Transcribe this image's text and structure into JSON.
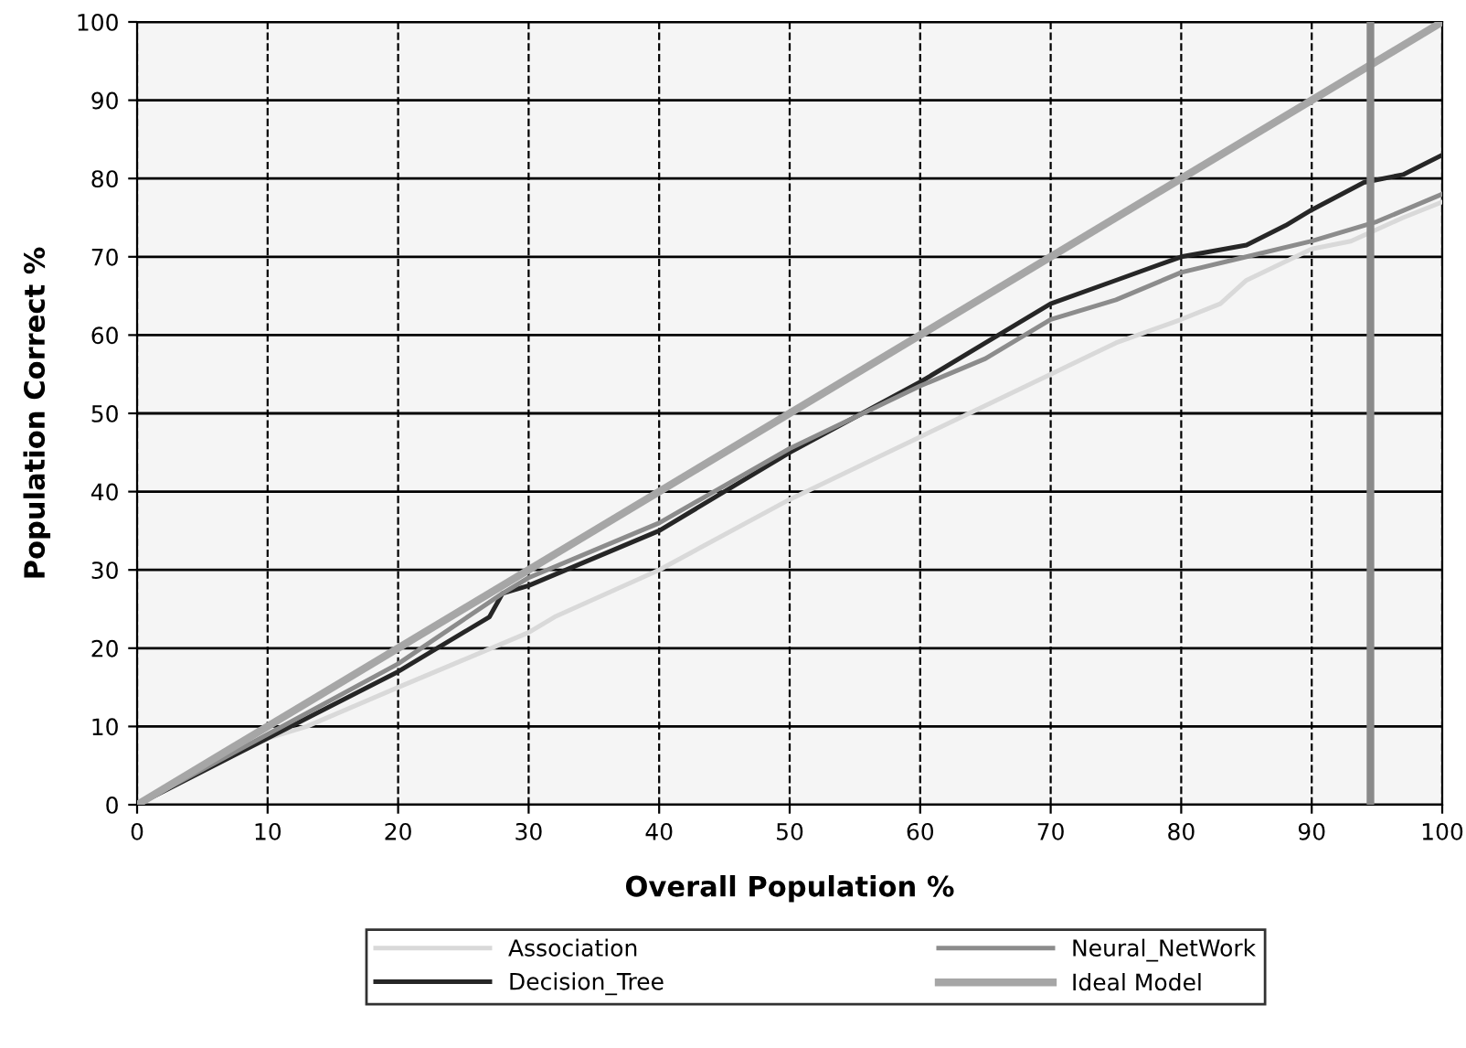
{
  "chart_data": {
    "type": "line",
    "xlabel": "Overall Population %",
    "ylabel": "Population Correct %",
    "xlim": [
      0,
      100
    ],
    "ylim": [
      0,
      100
    ],
    "xticks": [
      0,
      10,
      20,
      30,
      40,
      50,
      60,
      70,
      80,
      90,
      100
    ],
    "yticks": [
      0,
      10,
      20,
      30,
      40,
      50,
      60,
      70,
      80,
      90,
      100
    ],
    "grid": true,
    "legend": "bottom",
    "marker": "none",
    "line_style": "solid",
    "ref_lines": [
      {
        "axis": "x",
        "value": 94.5,
        "label": null,
        "color": "#8a8a8a"
      }
    ],
    "series": [
      {
        "name": "Association",
        "color": "#d9d9d9",
        "x": [
          0,
          10,
          13,
          20,
          25,
          30,
          32,
          40,
          50,
          55,
          60,
          65,
          70,
          75,
          80,
          83,
          85,
          90,
          93,
          97,
          100
        ],
        "values": [
          0,
          8.5,
          10,
          15,
          18.5,
          22,
          24,
          30,
          39,
          43,
          47,
          51,
          55,
          59,
          62,
          64,
          67,
          71,
          72,
          75,
          77
        ]
      },
      {
        "name": "Decision_Tree",
        "color": "#262626",
        "x": [
          0,
          10,
          20,
          25,
          27,
          28,
          30,
          40,
          50,
          60,
          65,
          70,
          75,
          80,
          85,
          88,
          90,
          94,
          97,
          100
        ],
        "values": [
          0,
          8.5,
          17,
          22,
          24,
          27,
          28,
          35,
          45,
          54,
          59,
          64,
          67,
          70,
          71.5,
          74,
          76,
          79.5,
          80.5,
          83
        ]
      },
      {
        "name": "Neural_NetWork",
        "color": "#8c8c8c",
        "x": [
          0,
          10,
          20,
          28,
          30,
          40,
          50,
          60,
          65,
          70,
          75,
          80,
          85,
          90,
          95,
          100
        ],
        "values": [
          0,
          9,
          18,
          27,
          29,
          36,
          45.5,
          53.5,
          57,
          62,
          64.5,
          68,
          70,
          72,
          74.5,
          78
        ]
      },
      {
        "name": "Ideal Model",
        "color": "#a6a6a6",
        "x": [
          0,
          100
        ],
        "values": [
          0,
          100
        ]
      }
    ]
  }
}
